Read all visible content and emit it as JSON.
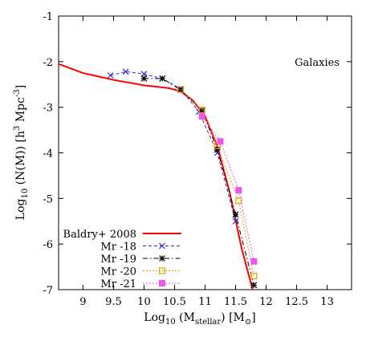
{
  "chart_data": {
    "type": "line",
    "title": "",
    "xlabel": {
      "main": "Log",
      "sub": "10",
      "rest": " (M",
      "sub2": "stellar",
      "rest2": ") [M",
      "sub3": "⊙",
      "end": "]"
    },
    "ylabel": {
      "main": "Log",
      "sub": "10",
      "rest": " (N(M)) [h",
      "sup": "3",
      "rest2": " Mpc",
      "sup2": "-3",
      "end": "]"
    },
    "xlim": [
      8.6,
      13.4
    ],
    "ylim": [
      -7,
      -1
    ],
    "x_ticks": [
      9,
      9.5,
      10,
      10.5,
      11,
      11.5,
      12,
      12.5,
      13
    ],
    "x_tick_labels": [
      "9",
      "9.5",
      "10",
      "10.5",
      "11",
      "11.5",
      "12",
      "12.5",
      "13"
    ],
    "y_ticks": [
      -7,
      -6,
      -5,
      -4,
      -3,
      -2,
      -1
    ],
    "y_tick_labels": [
      "-7",
      "-6",
      "-5",
      "-4",
      "-3",
      "-2",
      "-1"
    ],
    "annotation": "Galaxies",
    "legend_placement": "bottom-left",
    "series": [
      {
        "name": "Baldry+ 2008",
        "color": "#ff0000",
        "style": "solid",
        "marker": "none",
        "x": [
          8.6,
          9.0,
          9.5,
          10.0,
          10.4,
          10.6,
          10.8,
          11.0,
          11.2,
          11.4,
          11.6,
          11.8
        ],
        "y": [
          -2.05,
          -2.25,
          -2.4,
          -2.52,
          -2.58,
          -2.65,
          -2.85,
          -3.2,
          -3.85,
          -4.85,
          -6.1,
          -7.1
        ]
      },
      {
        "name": "Mr -18",
        "color": "#2b2bd1",
        "style": "dashed",
        "marker": "x",
        "x": [
          9.45,
          9.7,
          10.0,
          10.3,
          10.6,
          10.9,
          11.2,
          11.5
        ],
        "y": [
          -2.3,
          -2.22,
          -2.27,
          -2.37,
          -2.6,
          -3.1,
          -4.0,
          -5.5
        ]
      },
      {
        "name": "Mr -19",
        "color": "#000000",
        "style": "dashdot",
        "marker": "star",
        "x": [
          10.0,
          10.3,
          10.6,
          10.95,
          11.2,
          11.5,
          11.8
        ],
        "y": [
          -2.37,
          -2.37,
          -2.62,
          -3.07,
          -3.93,
          -5.35,
          -6.9
        ]
      },
      {
        "name": "Mr -20",
        "color": "#e6a000",
        "style": "dotted",
        "marker": "square-open",
        "x": [
          10.6,
          10.95,
          11.2,
          11.55,
          11.8
        ],
        "y": [
          -2.61,
          -3.06,
          -3.85,
          -5.05,
          -6.7
        ]
      },
      {
        "name": "Mr -21",
        "color": "#ee55ee",
        "style": "dotted",
        "marker": "square-filled",
        "x": [
          10.95,
          11.25,
          11.55,
          11.8
        ],
        "y": [
          -3.2,
          -3.75,
          -4.82,
          -6.38
        ]
      }
    ]
  }
}
